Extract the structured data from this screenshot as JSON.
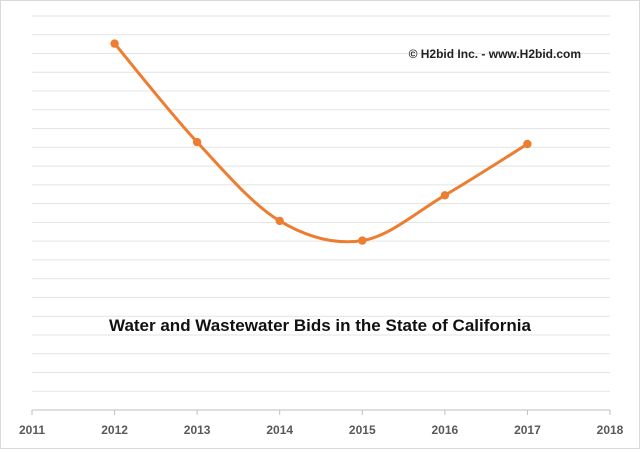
{
  "chart_data": {
    "type": "line",
    "title": "Water and Wastewater Bids in the State of California",
    "annotation": "© H2bid Inc. - www.H2bid.com",
    "xlabel": "",
    "ylabel": "",
    "x_ticks": [
      "2011",
      "2012",
      "2013",
      "2014",
      "2015",
      "2016",
      "2017",
      "2018"
    ],
    "xlim": [
      2011,
      2018
    ],
    "ylim": [
      0,
      100
    ],
    "y_axis_labels_shown": false,
    "grid": "horizontal",
    "series": [
      {
        "color": "#ed7d31",
        "x": [
          2012,
          2013,
          2014,
          2015,
          2016,
          2017
        ],
        "y": [
          93,
          68,
          48,
          43,
          54.5,
          67.5
        ],
        "smooth": true,
        "markers": true
      }
    ]
  }
}
